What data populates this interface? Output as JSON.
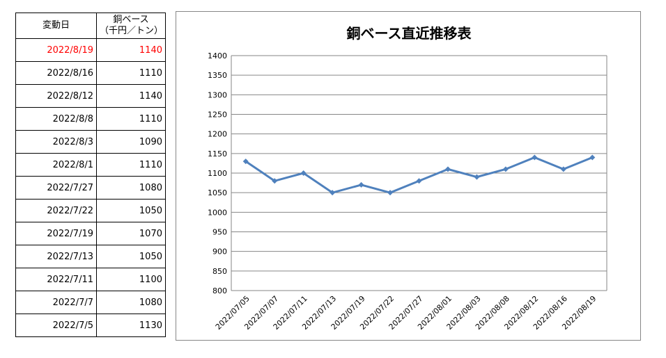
{
  "table": {
    "headers": {
      "date": "変動日",
      "price_line1": "銅ベース",
      "price_line2": "（千円／トン）"
    },
    "rows": [
      {
        "date": "2022/8/19",
        "price": "1140",
        "highlight": true
      },
      {
        "date": "2022/8/16",
        "price": "1110"
      },
      {
        "date": "2022/8/12",
        "price": "1140"
      },
      {
        "date": "2022/8/8",
        "price": "1110"
      },
      {
        "date": "2022/8/3",
        "price": "1090"
      },
      {
        "date": "2022/8/1",
        "price": "1110"
      },
      {
        "date": "2022/7/27",
        "price": "1080"
      },
      {
        "date": "2022/7/22",
        "price": "1050"
      },
      {
        "date": "2022/7/19",
        "price": "1070"
      },
      {
        "date": "2022/7/13",
        "price": "1050"
      },
      {
        "date": "2022/7/11",
        "price": "1100"
      },
      {
        "date": "2022/7/7",
        "price": "1080"
      },
      {
        "date": "2022/7/5",
        "price": "1130"
      }
    ],
    "highlight_color": "#ff0000"
  },
  "chart_data": {
    "type": "line",
    "title": "銅ベース直近推移表",
    "categories": [
      "2022/07/05",
      "2022/07/07",
      "2022/07/11",
      "2022/07/13",
      "2022/07/19",
      "2022/07/22",
      "2022/07/27",
      "2022/08/01",
      "2022/08/03",
      "2022/08/08",
      "2022/08/12",
      "2022/08/16",
      "2022/08/19"
    ],
    "series": [
      {
        "values": [
          1130,
          1080,
          1100,
          1050,
          1070,
          1050,
          1080,
          1110,
          1090,
          1110,
          1140,
          1110,
          1140
        ],
        "color": "#4f81bd",
        "marker": "diamond"
      }
    ],
    "ylim": [
      800,
      1400
    ],
    "yticks": [
      800,
      850,
      900,
      950,
      1000,
      1050,
      1100,
      1150,
      1200,
      1250,
      1300,
      1350,
      1400
    ],
    "grid": true,
    "legend": "none"
  }
}
